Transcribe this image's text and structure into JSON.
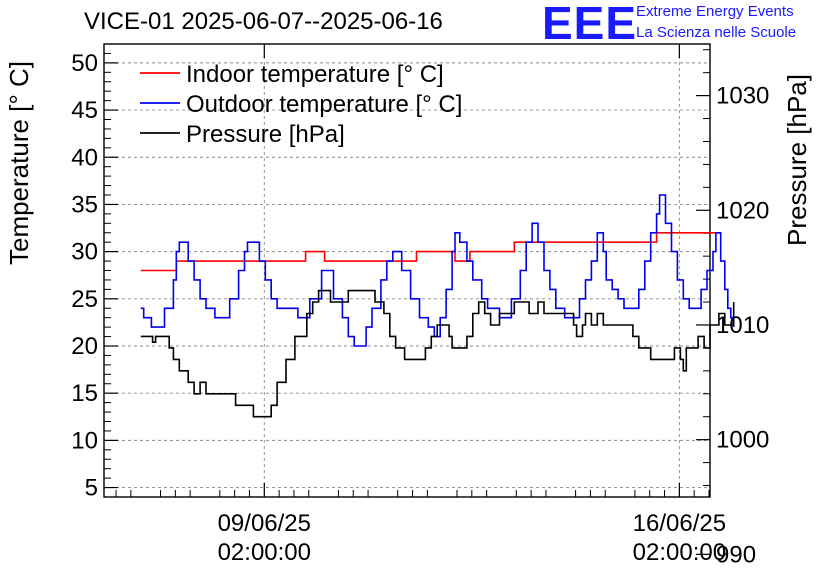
{
  "header": {
    "title": "VICE-01 2025-06-07--2025-06-16",
    "logo_text": "EEE",
    "logo_line1": "Extreme Energy Events",
    "logo_line2": "La Scienza nelle Scuole",
    "logo_color": "#1a1aff"
  },
  "chart_data": {
    "type": "line",
    "title": "VICE-01 2025-06-07--2025-06-16",
    "xlabel": "",
    "ylabel_left": "Temperature [° C]",
    "ylabel_right": "Pressure [hPa]",
    "x_unit": "days since 2025-06-07 00:00",
    "xlim": [
      -0.62,
      9.6
    ],
    "ylim_left": [
      4,
      52
    ],
    "ylim_right": [
      995.0,
      1034.5
    ],
    "grid": true,
    "legend_position": "top-left",
    "y_left_ticks": [
      5,
      10,
      15,
      20,
      25,
      30,
      35,
      40,
      45,
      50
    ],
    "y_right_ticks": [
      990,
      1000,
      1010,
      1020,
      1030
    ],
    "x_ticks": [
      {
        "x": 2.0833,
        "line1": "09/06/25",
        "line2": "02:00:00"
      },
      {
        "x": 9.0833,
        "line1": "16/06/25",
        "line2": "02:00:00"
      }
    ],
    "series": [
      {
        "name": "Indoor temperature [° C]",
        "axis": "left",
        "color": "#ff0000",
        "points": [
          [
            0,
            28
          ],
          [
            0.5,
            28
          ],
          [
            0.6,
            29
          ],
          [
            2.1,
            29
          ],
          [
            2.7,
            29
          ],
          [
            2.78,
            30
          ],
          [
            3.0,
            30
          ],
          [
            3.1,
            29
          ],
          [
            4.5,
            29
          ],
          [
            4.65,
            30
          ],
          [
            5.2,
            30
          ],
          [
            5.3,
            29
          ],
          [
            5.55,
            30
          ],
          [
            6.2,
            30
          ],
          [
            6.3,
            31
          ],
          [
            7.4,
            31
          ],
          [
            7.6,
            31
          ],
          [
            8.5,
            31
          ],
          [
            8.7,
            32
          ],
          [
            9.7,
            32
          ]
        ]
      },
      {
        "name": "Outdoor temperature [° C]",
        "axis": "left",
        "color": "#0000ee",
        "points": [
          [
            0,
            24
          ],
          [
            0.05,
            23
          ],
          [
            0.12,
            23
          ],
          [
            0.18,
            22
          ],
          [
            0.3,
            22
          ],
          [
            0.4,
            24
          ],
          [
            0.55,
            27
          ],
          [
            0.6,
            30
          ],
          [
            0.65,
            31
          ],
          [
            0.72,
            31
          ],
          [
            0.8,
            29
          ],
          [
            0.9,
            27
          ],
          [
            1.0,
            25
          ],
          [
            1.1,
            24
          ],
          [
            1.25,
            23
          ],
          [
            1.4,
            23
          ],
          [
            1.5,
            25
          ],
          [
            1.65,
            28
          ],
          [
            1.75,
            30
          ],
          [
            1.8,
            31
          ],
          [
            1.9,
            31
          ],
          [
            2.0,
            29
          ],
          [
            2.1,
            27
          ],
          [
            2.2,
            25
          ],
          [
            2.3,
            24
          ],
          [
            2.5,
            24
          ],
          [
            2.65,
            23
          ],
          [
            2.85,
            25
          ],
          [
            3.05,
            28
          ],
          [
            3.25,
            25
          ],
          [
            3.4,
            23
          ],
          [
            3.5,
            21
          ],
          [
            3.6,
            20
          ],
          [
            3.72,
            20
          ],
          [
            3.8,
            22
          ],
          [
            3.9,
            24
          ],
          [
            4.05,
            27
          ],
          [
            4.15,
            29
          ],
          [
            4.25,
            30
          ],
          [
            4.4,
            28
          ],
          [
            4.55,
            25
          ],
          [
            4.7,
            23
          ],
          [
            4.85,
            22
          ],
          [
            4.95,
            21
          ],
          [
            5.05,
            23
          ],
          [
            5.15,
            26
          ],
          [
            5.25,
            30
          ],
          [
            5.3,
            32
          ],
          [
            5.38,
            31
          ],
          [
            5.5,
            29
          ],
          [
            5.6,
            27
          ],
          [
            5.75,
            25
          ],
          [
            5.85,
            24
          ],
          [
            5.95,
            24
          ],
          [
            6.05,
            23
          ],
          [
            6.15,
            23
          ],
          [
            6.25,
            25
          ],
          [
            6.4,
            28
          ],
          [
            6.5,
            31
          ],
          [
            6.6,
            33
          ],
          [
            6.7,
            31
          ],
          [
            6.8,
            28
          ],
          [
            6.9,
            26
          ],
          [
            7.0,
            24
          ],
          [
            7.15,
            23
          ],
          [
            7.25,
            23
          ],
          [
            7.4,
            25
          ],
          [
            7.5,
            27
          ],
          [
            7.6,
            29
          ],
          [
            7.7,
            32
          ],
          [
            7.8,
            30
          ],
          [
            7.85,
            27
          ],
          [
            7.95,
            26
          ],
          [
            8.05,
            25
          ],
          [
            8.15,
            24
          ],
          [
            8.25,
            24
          ],
          [
            8.4,
            26
          ],
          [
            8.5,
            29
          ],
          [
            8.6,
            32
          ],
          [
            8.7,
            34
          ],
          [
            8.75,
            36
          ],
          [
            8.85,
            33
          ],
          [
            8.95,
            30
          ],
          [
            9.05,
            27
          ],
          [
            9.15,
            25
          ],
          [
            9.25,
            24
          ],
          [
            9.35,
            24
          ],
          [
            9.45,
            26
          ],
          [
            9.55,
            28
          ],
          [
            9.65,
            30
          ],
          [
            9.7,
            32
          ],
          [
            9.78,
            29
          ],
          [
            9.85,
            26
          ],
          [
            9.9,
            24
          ],
          [
            9.95,
            23
          ],
          [
            10.0,
            22
          ]
        ]
      },
      {
        "name": "Pressure [hPa]",
        "axis": "right",
        "color": "#000000",
        "points": [
          [
            0,
            1009
          ],
          [
            0.15,
            1009
          ],
          [
            0.2,
            1008.5
          ],
          [
            0.25,
            1009
          ],
          [
            0.4,
            1009
          ],
          [
            0.48,
            1008
          ],
          [
            0.55,
            1007
          ],
          [
            0.65,
            1006
          ],
          [
            0.8,
            1005
          ],
          [
            0.9,
            1004
          ],
          [
            1.0,
            1005
          ],
          [
            1.1,
            1004
          ],
          [
            1.3,
            1004
          ],
          [
            1.5,
            1004
          ],
          [
            1.6,
            1003
          ],
          [
            1.8,
            1003
          ],
          [
            1.9,
            1002
          ],
          [
            2.05,
            1002
          ],
          [
            2.2,
            1003
          ],
          [
            2.3,
            1005
          ],
          [
            2.45,
            1007
          ],
          [
            2.6,
            1009
          ],
          [
            2.8,
            1011
          ],
          [
            2.9,
            1012
          ],
          [
            3.0,
            1013
          ],
          [
            3.2,
            1012
          ],
          [
            3.4,
            1012
          ],
          [
            3.5,
            1013
          ],
          [
            3.8,
            1013
          ],
          [
            3.95,
            1012
          ],
          [
            4.1,
            1011
          ],
          [
            4.2,
            1009
          ],
          [
            4.3,
            1008
          ],
          [
            4.45,
            1007
          ],
          [
            4.7,
            1007
          ],
          [
            4.8,
            1008
          ],
          [
            4.9,
            1009
          ],
          [
            5.0,
            1010
          ],
          [
            5.2,
            1009
          ],
          [
            5.25,
            1008
          ],
          [
            5.4,
            1008
          ],
          [
            5.5,
            1009
          ],
          [
            5.6,
            1011
          ],
          [
            5.7,
            1012
          ],
          [
            5.8,
            1011
          ],
          [
            5.9,
            1010
          ],
          [
            6.05,
            1011
          ],
          [
            6.15,
            1011
          ],
          [
            6.3,
            1012
          ],
          [
            6.45,
            1012
          ],
          [
            6.55,
            1011
          ],
          [
            6.7,
            1012
          ],
          [
            6.8,
            1011
          ],
          [
            7.0,
            1011
          ],
          [
            7.1,
            1011
          ],
          [
            7.2,
            1011
          ],
          [
            7.3,
            1010
          ],
          [
            7.35,
            1009
          ],
          [
            7.45,
            1010
          ],
          [
            7.5,
            1011
          ],
          [
            7.6,
            1010
          ],
          [
            7.7,
            1011
          ],
          [
            7.8,
            1010
          ],
          [
            7.9,
            1010
          ],
          [
            8.0,
            1010
          ],
          [
            8.1,
            1010
          ],
          [
            8.2,
            1010
          ],
          [
            8.3,
            1009
          ],
          [
            8.4,
            1008
          ],
          [
            8.5,
            1008
          ],
          [
            8.6,
            1007
          ],
          [
            8.7,
            1007
          ],
          [
            8.8,
            1007
          ],
          [
            8.9,
            1007
          ],
          [
            9.0,
            1008
          ],
          [
            9.1,
            1007
          ],
          [
            9.15,
            1006
          ],
          [
            9.2,
            1008
          ],
          [
            9.3,
            1008
          ],
          [
            9.4,
            1009
          ],
          [
            9.5,
            1008
          ],
          [
            9.6,
            1010
          ],
          [
            9.7,
            1010
          ],
          [
            9.75,
            1011
          ],
          [
            9.85,
            1010
          ],
          [
            9.95,
            1010
          ],
          [
            10.0,
            1012
          ]
        ]
      }
    ]
  }
}
